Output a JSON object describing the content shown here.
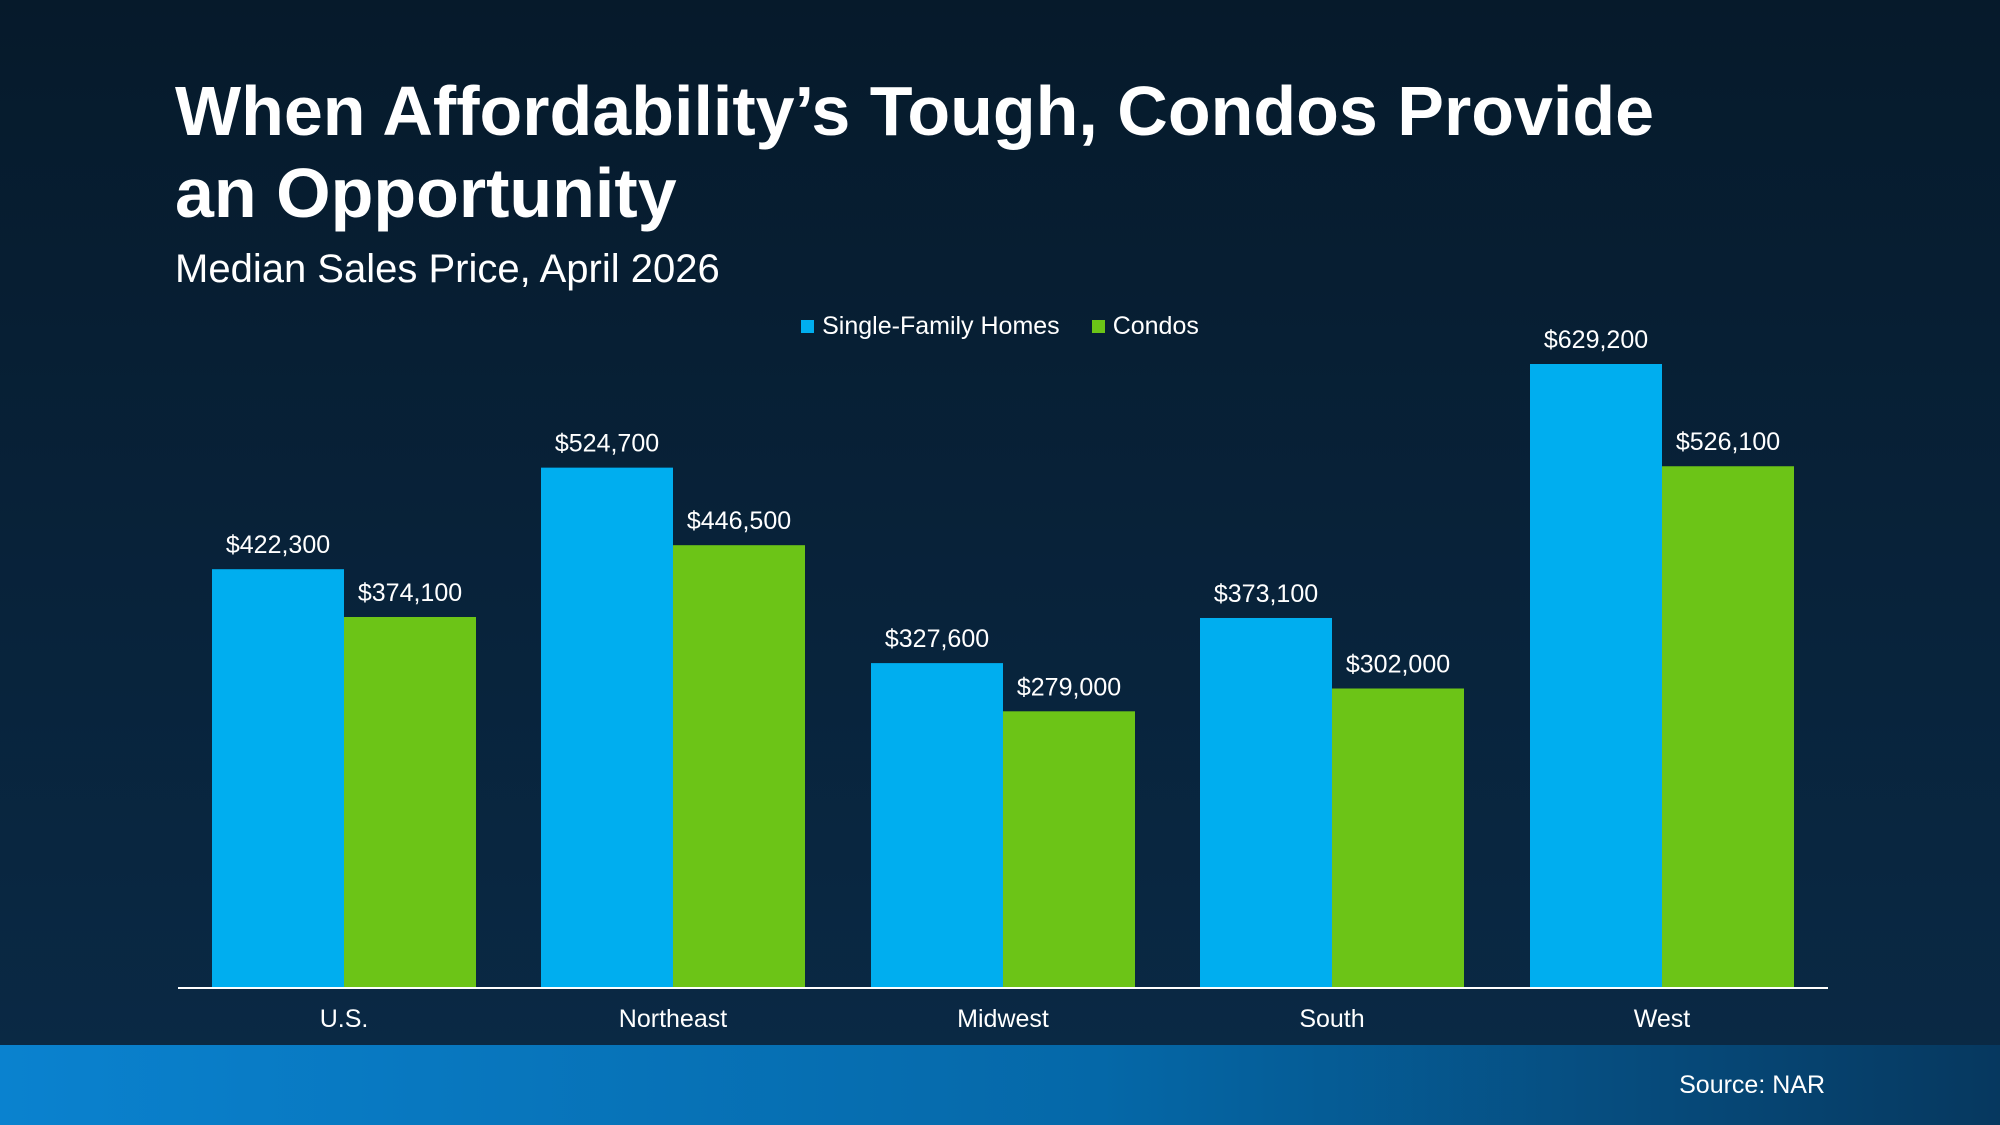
{
  "header": {
    "title": "When Affordability’s Tough, Condos Provide an Opportunity",
    "subtitle": "Median Sales Price, April 2026"
  },
  "footer": {
    "source": "Source: NAR"
  },
  "colors": {
    "single_family": "#00aeef",
    "condos": "#6cc417",
    "axis_line": "#ffffff",
    "text": "#ffffff"
  },
  "chart_data": {
    "type": "bar",
    "title": "When Affordability’s Tough, Condos Provide an Opportunity",
    "subtitle": "Median Sales Price, April 2026",
    "categories": [
      "U.S.",
      "Northeast",
      "Midwest",
      "South",
      "West"
    ],
    "series": [
      {
        "name": "Single-Family Homes",
        "color": "#00aeef",
        "values": [
          422300,
          524700,
          327600,
          373100,
          629200
        ],
        "labels": [
          "$422,300",
          "$524,700",
          "$327,600",
          "$373,100",
          "$629,200"
        ]
      },
      {
        "name": "Condos",
        "color": "#6cc417",
        "values": [
          374100,
          446500,
          279000,
          302000,
          526100
        ],
        "labels": [
          "$374,100",
          "$446,500",
          "$279,000",
          "$302,000",
          "$526,100"
        ]
      }
    ],
    "xlabel": "",
    "ylabel": "",
    "ylim": [
      0,
      650000
    ],
    "grid": false,
    "legend": "top-center"
  }
}
